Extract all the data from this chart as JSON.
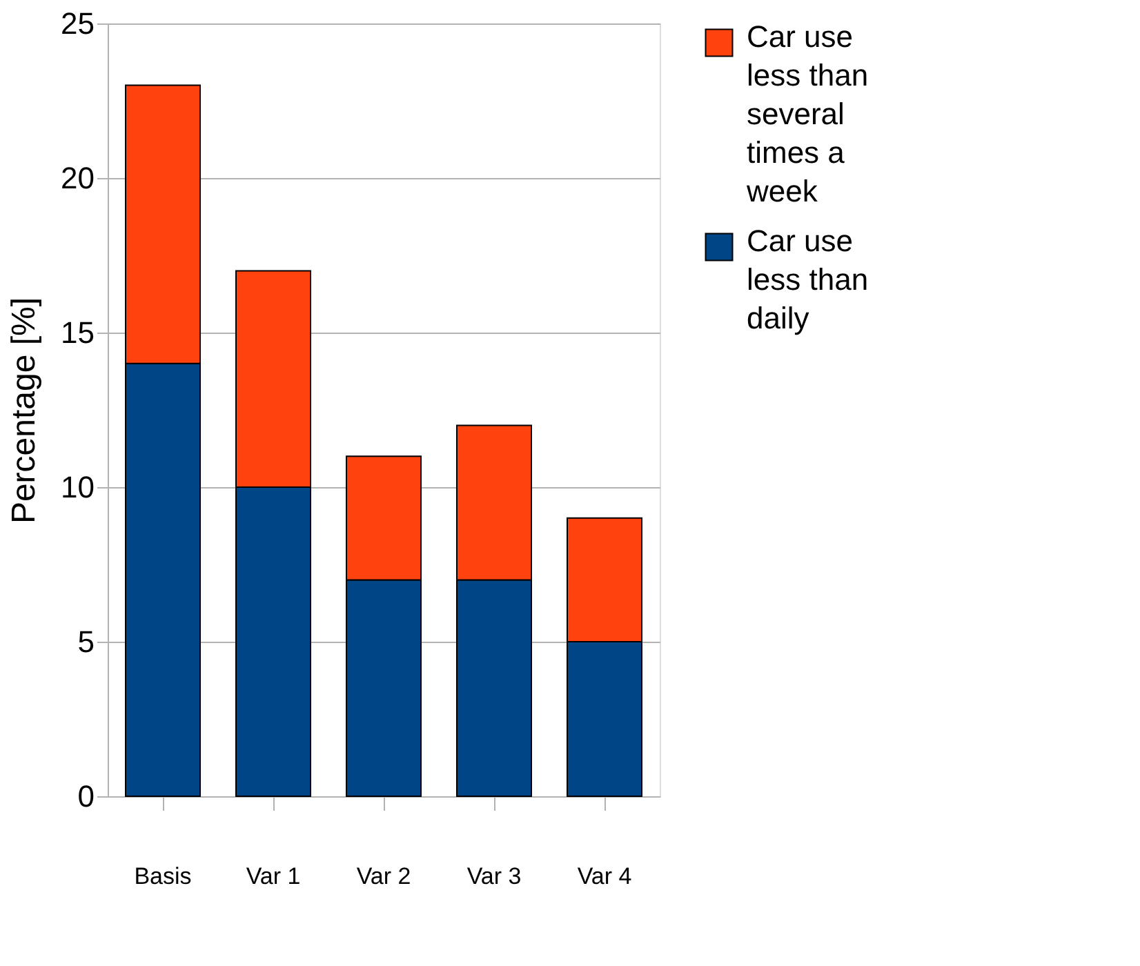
{
  "chart_data": {
    "type": "bar",
    "stacked": true,
    "ylabel": "Percentage [%]",
    "categories": [
      "Basis",
      "Var 1",
      "Var 2",
      "Var 3",
      "Var 4"
    ],
    "series": [
      {
        "name": "Car use less than daily",
        "color": "#004586",
        "values": [
          14,
          10,
          7,
          7,
          5
        ]
      },
      {
        "name": "Car use less than several times a week",
        "color": "#ff420e",
        "values": [
          9,
          7,
          4,
          5,
          4
        ]
      }
    ],
    "ylim": [
      0,
      25
    ],
    "yticks": [
      0,
      5,
      10,
      15,
      20,
      25
    ],
    "grid": "y",
    "legend": "right"
  }
}
